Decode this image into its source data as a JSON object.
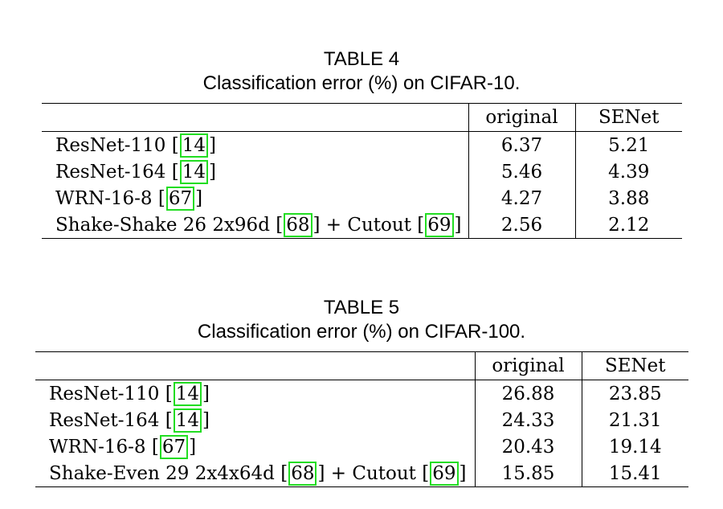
{
  "tables": [
    {
      "label": "TABLE 4",
      "caption": "Classification error (%) on CIFAR-10.",
      "headers": [
        "",
        "original",
        "SENet"
      ],
      "rows": [
        {
          "model": "ResNet-110",
          "cite1": "14",
          "original": "6.37",
          "senet": "5.21"
        },
        {
          "model": "ResNet-164",
          "cite1": "14",
          "original": "5.46",
          "senet": "4.39"
        },
        {
          "model": "WRN-16-8",
          "cite1": "67",
          "original": "4.27",
          "senet": "3.88"
        },
        {
          "model": "Shake-Shake 26 2x96d",
          "cite1": "68",
          "extra": "+ Cutout",
          "cite2": "69",
          "original": "2.56",
          "senet": "2.12"
        }
      ]
    },
    {
      "label": "TABLE 5",
      "caption": "Classification error (%) on CIFAR-100.",
      "headers": [
        "",
        "original",
        "SENet"
      ],
      "rows": [
        {
          "model": "ResNet-110",
          "cite1": "14",
          "original": "26.88",
          "senet": "23.85"
        },
        {
          "model": "ResNet-164",
          "cite1": "14",
          "original": "24.33",
          "senet": "21.31"
        },
        {
          "model": "WRN-16-8",
          "cite1": "67",
          "original": "20.43",
          "senet": "19.14"
        },
        {
          "model": "Shake-Even 29 2x4x64d",
          "cite1": "68",
          "extra": "+ Cutout",
          "cite2": "69",
          "original": "15.85",
          "senet": "15.41"
        }
      ]
    }
  ],
  "colors": {
    "citation_box": "#22dd22"
  }
}
